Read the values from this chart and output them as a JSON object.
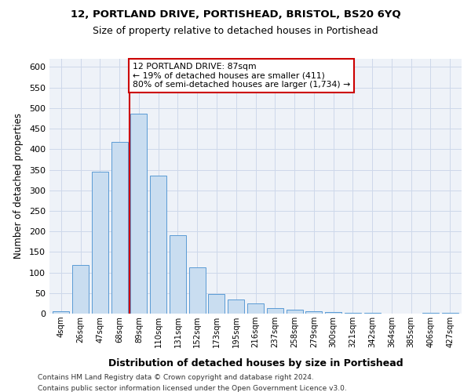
{
  "title": "12, PORTLAND DRIVE, PORTISHEAD, BRISTOL, BS20 6YQ",
  "subtitle": "Size of property relative to detached houses in Portishead",
  "xlabel": "Distribution of detached houses by size in Portishead",
  "ylabel": "Number of detached properties",
  "bar_labels": [
    "4sqm",
    "26sqm",
    "47sqm",
    "68sqm",
    "89sqm",
    "110sqm",
    "131sqm",
    "152sqm",
    "173sqm",
    "195sqm",
    "216sqm",
    "237sqm",
    "258sqm",
    "279sqm",
    "300sqm",
    "321sqm",
    "342sqm",
    "364sqm",
    "385sqm",
    "406sqm",
    "427sqm"
  ],
  "bar_values": [
    5,
    118,
    345,
    417,
    487,
    335,
    191,
    112,
    48,
    35,
    25,
    14,
    9,
    5,
    3,
    1,
    1,
    0,
    0,
    2,
    2
  ],
  "bar_color": "#c9ddf0",
  "bar_edge_color": "#5b9bd5",
  "vline_x_index": 3.5,
  "vline_color": "#cc0000",
  "annotation_text": "12 PORTLAND DRIVE: 87sqm\n← 19% of detached houses are smaller (411)\n80% of semi-detached houses are larger (1,734) →",
  "ylim": [
    0,
    620
  ],
  "yticks": [
    0,
    50,
    100,
    150,
    200,
    250,
    300,
    350,
    400,
    450,
    500,
    550,
    600
  ],
  "grid_color": "#cdd8ea",
  "bg_color": "#eef2f8",
  "footer_line1": "Contains HM Land Registry data © Crown copyright and database right 2024.",
  "footer_line2": "Contains public sector information licensed under the Open Government Licence v3.0."
}
